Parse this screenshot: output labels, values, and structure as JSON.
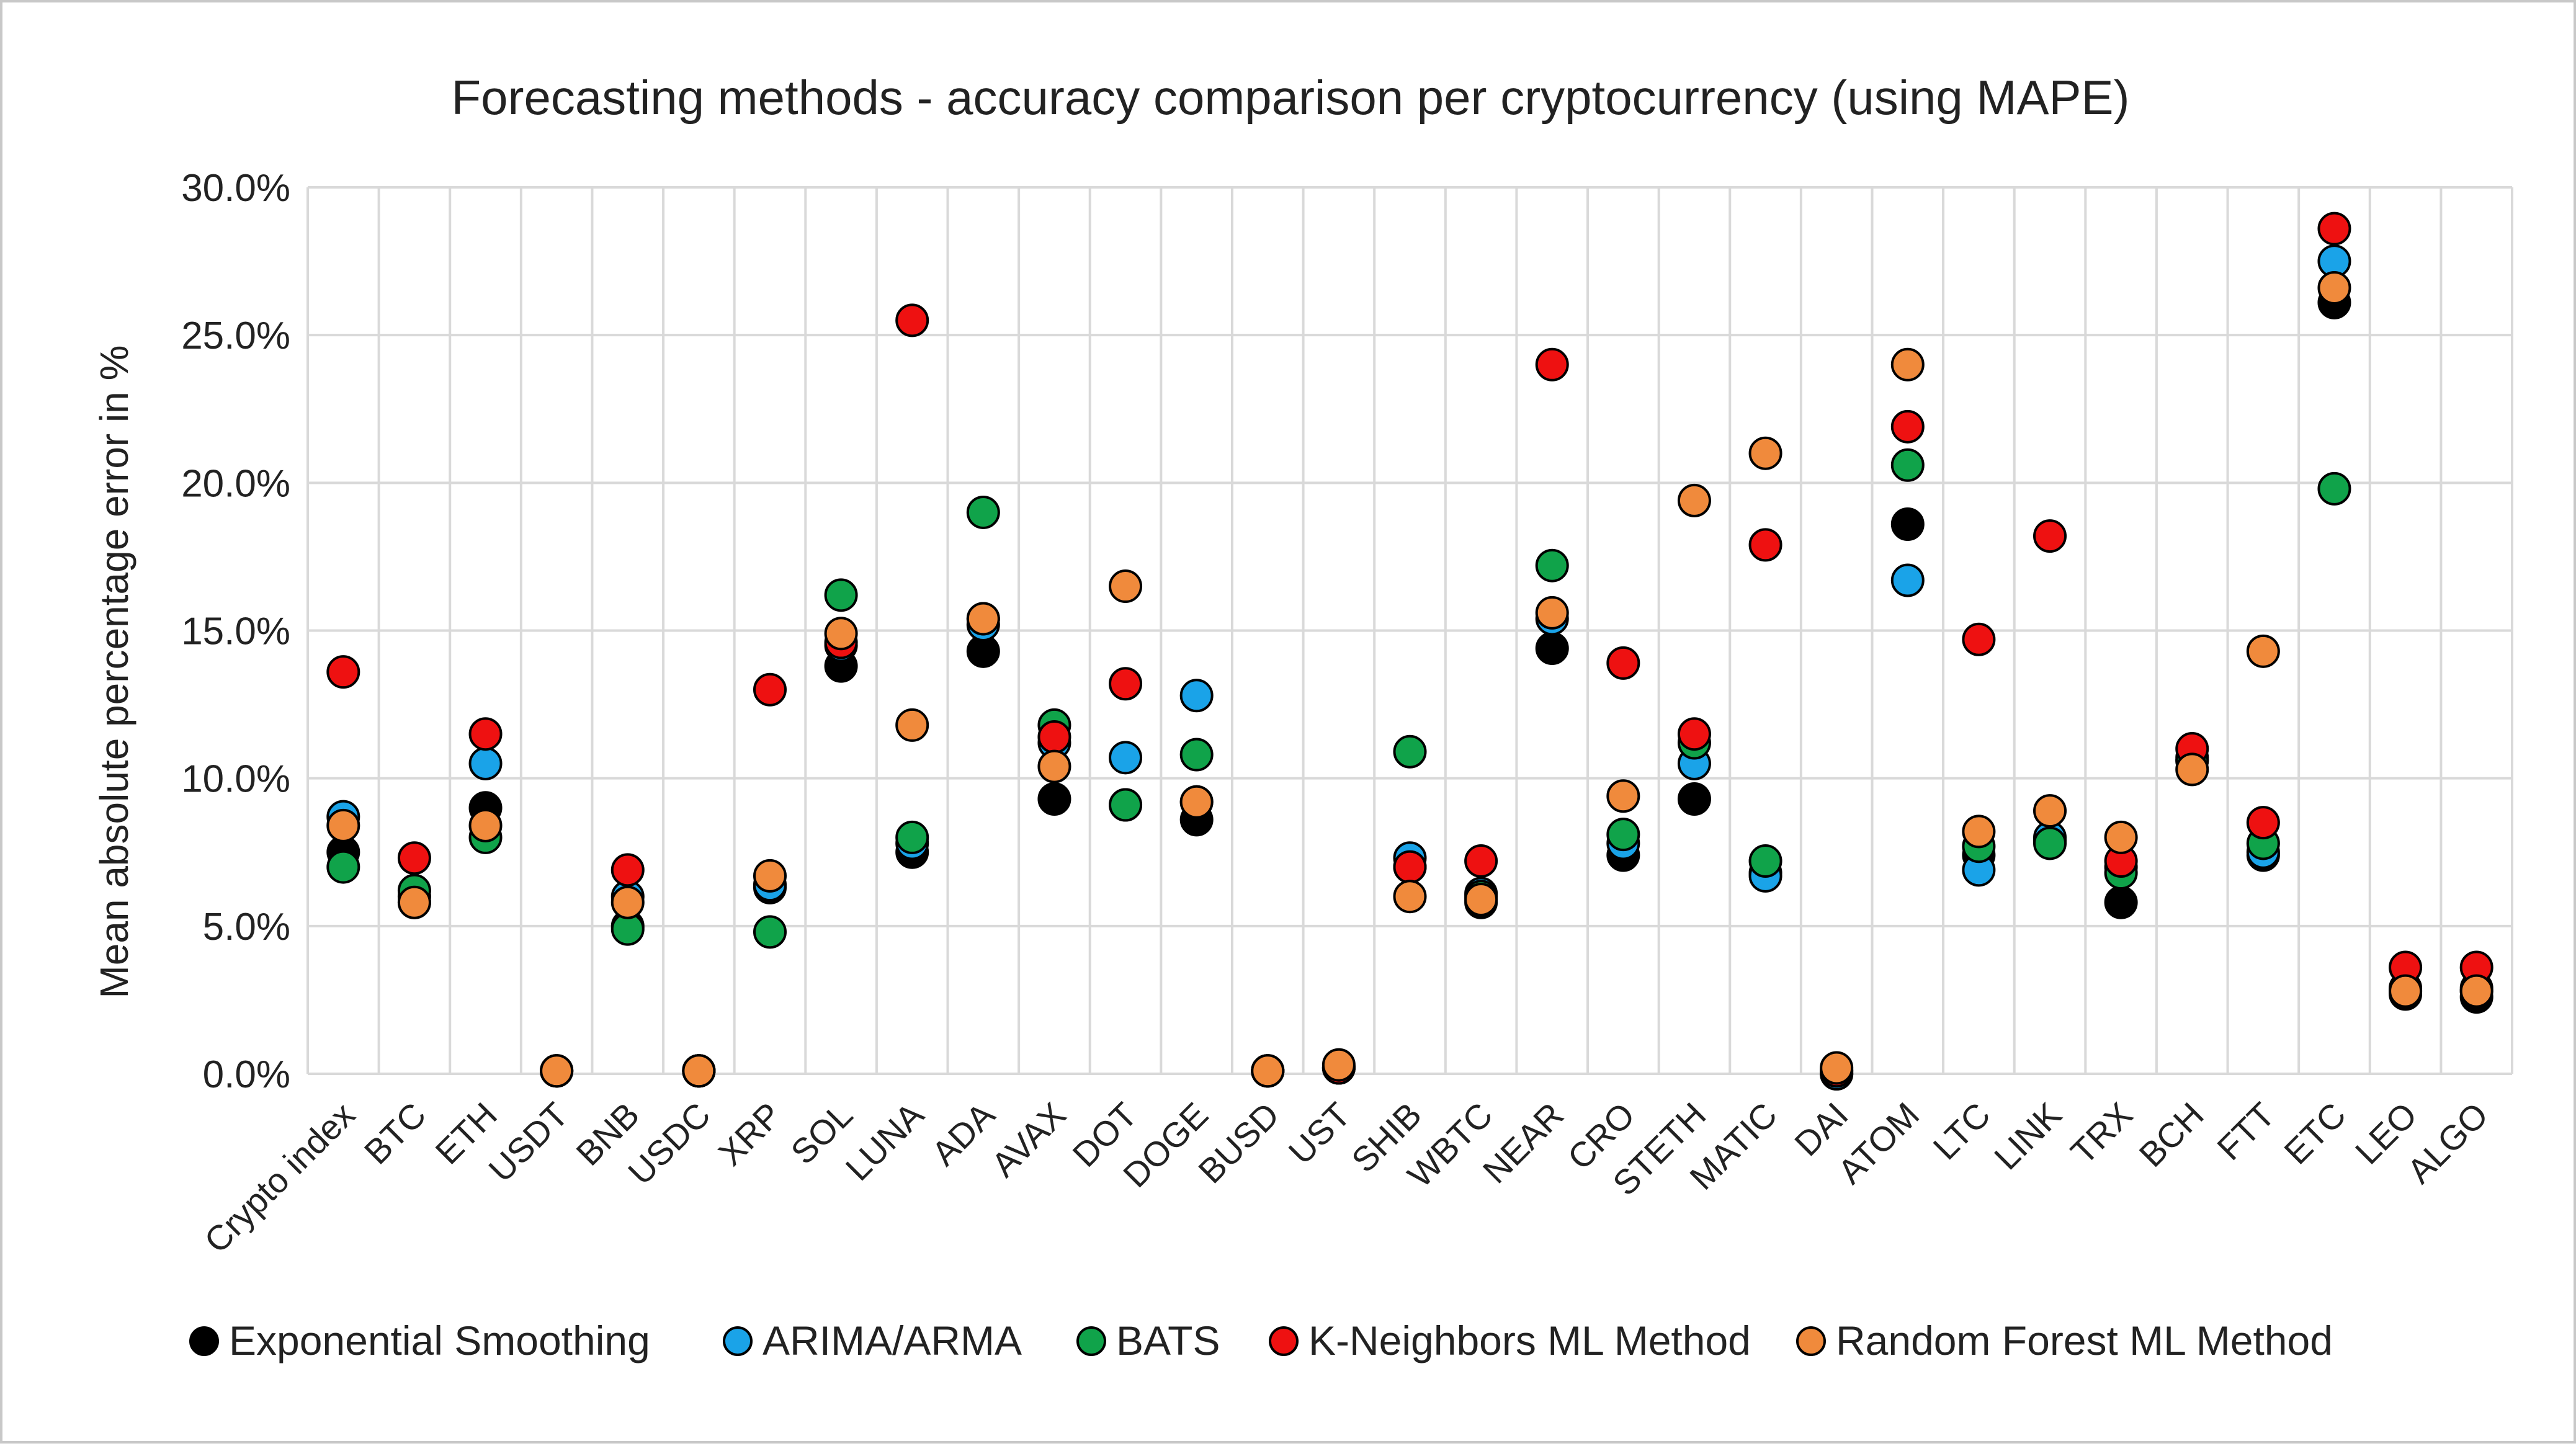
{
  "chart_data": {
    "type": "scatter",
    "title": "Forecasting methods - accuracy comparison per cryptocurrency (using MAPE)",
    "xlabel": "",
    "ylabel": "Mean absolute percentage error in %",
    "ylim": [
      0,
      30
    ],
    "yticks": [
      0,
      5,
      10,
      15,
      20,
      25,
      30
    ],
    "ytick_labels": [
      "0.0%",
      "5.0%",
      "10.0%",
      "15.0%",
      "20.0%",
      "25.0%",
      "30.0%"
    ],
    "grid": true,
    "legend_position": "bottom",
    "categories": [
      "Crypto index",
      "BTC",
      "ETH",
      "USDT",
      "BNB",
      "USDC",
      "XRP",
      "SOL",
      "LUNA",
      "ADA",
      "AVAX",
      "DOT",
      "DOGE",
      "BUSD",
      "UST",
      "SHIB",
      "WBTC",
      "NEAR",
      "CRO",
      "STETH",
      "MATIC",
      "DAI",
      "ATOM",
      "LTC",
      "LINK",
      "TRX",
      "BCH",
      "FTT",
      "ETC",
      "LEO",
      "ALGO"
    ],
    "series": [
      {
        "name": "Exponential Smoothing",
        "color": "#000000",
        "values": [
          7.5,
          5.8,
          9.0,
          0.1,
          5.0,
          0.1,
          6.3,
          13.8,
          7.5,
          14.3,
          9.3,
          9.1,
          8.6,
          0.1,
          0.2,
          7.0,
          5.8,
          14.4,
          7.4,
          9.3,
          6.8,
          0.0,
          18.6,
          7.4,
          7.9,
          5.8,
          10.7,
          7.4,
          26.1,
          2.7,
          2.6
        ]
      },
      {
        "name": "ARIMA/ARMA",
        "color": "#1aa3e8",
        "values": [
          8.7,
          6.0,
          10.5,
          0.1,
          6.0,
          0.1,
          6.4,
          14.5,
          7.8,
          15.2,
          11.2,
          10.7,
          12.8,
          0.1,
          0.2,
          7.3,
          6.1,
          15.4,
          7.8,
          10.5,
          6.7,
          0.0,
          16.7,
          6.9,
          8.0,
          7.0,
          10.6,
          7.5,
          27.5,
          2.9,
          2.9
        ]
      },
      {
        "name": "BATS",
        "color": "#10a34a",
        "values": [
          7.0,
          6.2,
          8.0,
          0.1,
          4.9,
          0.1,
          4.8,
          16.2,
          8.0,
          19.0,
          11.8,
          9.1,
          10.8,
          0.1,
          0.2,
          10.9,
          6.0,
          17.2,
          8.1,
          11.2,
          7.2,
          0.1,
          20.6,
          7.7,
          7.8,
          6.8,
          10.6,
          7.8,
          19.8,
          2.8,
          2.8
        ]
      },
      {
        "name": "K-Neighbors ML Method",
        "color": "#ee1111",
        "values": [
          13.6,
          7.3,
          11.5,
          0.1,
          6.9,
          0.1,
          13.0,
          14.6,
          25.5,
          15.4,
          11.4,
          13.2,
          9.2,
          0.1,
          0.2,
          7.0,
          7.2,
          24.0,
          13.9,
          11.5,
          17.9,
          0.1,
          21.9,
          14.7,
          18.2,
          7.2,
          11.0,
          8.5,
          28.6,
          3.6,
          3.6
        ]
      },
      {
        "name": "Random Forest ML Method",
        "color": "#f08a3c",
        "values": [
          8.4,
          5.8,
          8.4,
          0.1,
          5.8,
          0.1,
          6.7,
          14.9,
          11.8,
          15.4,
          10.4,
          16.5,
          9.2,
          0.1,
          0.3,
          6.0,
          5.9,
          15.6,
          9.4,
          19.4,
          21.0,
          0.2,
          24.0,
          8.2,
          8.9,
          8.0,
          10.3,
          14.3,
          26.6,
          2.8,
          2.8
        ]
      }
    ]
  }
}
